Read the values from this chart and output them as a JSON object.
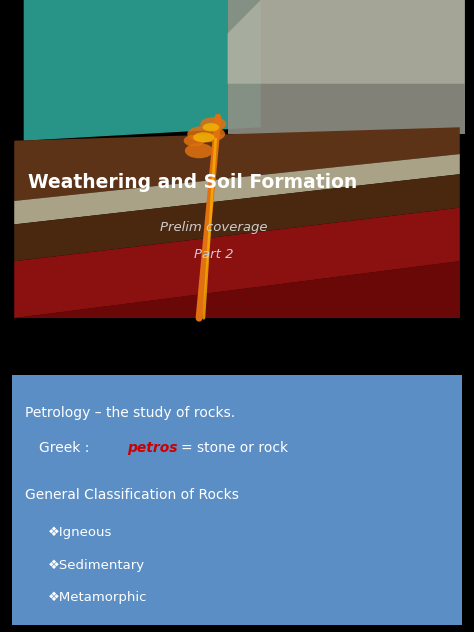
{
  "bg_color": "#000000",
  "box_color": "#5b8ec4",
  "title_text": "Weathering and Soil Formation",
  "title_color": "#ffffff",
  "title_fontsize": 13.5,
  "subtitle1": "Prelim coverage",
  "subtitle2": "Part 2",
  "subtitle_color": "#cccccc",
  "subtitle_fontsize": 9.5,
  "box_text1": "Petrology – the study of rocks.",
  "box_text2_prefix": "  Greek :  ",
  "box_text2_red": "petros",
  "box_text2_suffix": " = stone or rock",
  "box_text3": "General Classification of Rocks",
  "box_bullets": [
    "❖Igneous",
    "❖Sedimentary",
    "❖Metamorphic"
  ],
  "text_color_white": "#ffffff",
  "text_color_red": "#cc0000",
  "body_fontsize": 10,
  "bullet_fontsize": 9.5,
  "layers": {
    "teal": {
      "color": "#2a9d8f",
      "alpha": 0.95
    },
    "gray_mountain": {
      "color": "#a0a090",
      "alpha": 0.9
    },
    "brown_upper": {
      "color": "#5c3317",
      "alpha": 1.0
    },
    "beige_band": {
      "color": "#c8c0a0",
      "alpha": 0.85
    },
    "red_mantle": {
      "color": "#8b0a0a",
      "alpha": 1.0
    },
    "dark_red": {
      "color": "#5a0000",
      "alpha": 1.0
    },
    "orange_lava": {
      "color": "#e07010",
      "alpha": 0.9
    },
    "yellow_lava": {
      "color": "#f0a000",
      "alpha": 0.8
    }
  }
}
